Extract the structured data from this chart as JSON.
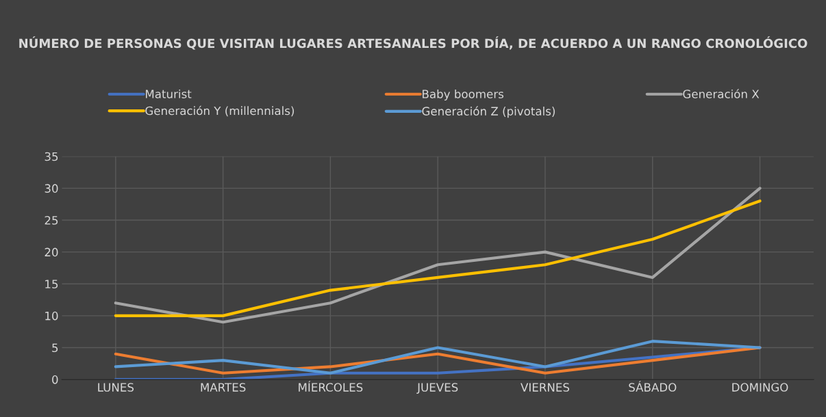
{
  "chart_data": {
    "type": "line",
    "title": "NÚMERO DE PERSONAS QUE VISITAN LUGARES ARTESANALES POR DÍA, DE ACUERDO A UN RANGO CRONOLÓGICO",
    "categories": [
      "LUNES",
      "MARTES",
      "MÍERCOLES",
      "JUEVES",
      "VIERNES",
      "SÁBADO",
      "DOMINGO"
    ],
    "series": [
      {
        "name": "Maturist",
        "color": "#4472c4",
        "values": [
          0,
          0,
          1,
          1,
          2,
          null,
          5
        ]
      },
      {
        "name": "Baby boomers",
        "color": "#ed7d31",
        "values": [
          4,
          1,
          2,
          4,
          1,
          3,
          5
        ]
      },
      {
        "name": "Generación X",
        "color": "#a5a5a5",
        "values": [
          12,
          9,
          12,
          18,
          20,
          16,
          30
        ]
      },
      {
        "name": "Generación Y (millennials)",
        "color": "#ffc000",
        "values": [
          10,
          10,
          14,
          16,
          18,
          22,
          28
        ]
      },
      {
        "name": "Generación Z (pivotals)",
        "color": "#5b9bd5",
        "values": [
          2,
          3,
          1,
          5,
          2,
          6,
          5
        ]
      }
    ],
    "ylim": [
      0,
      35
    ],
    "yticks": [
      0,
      5,
      10,
      15,
      20,
      25,
      30,
      35
    ],
    "grid": true,
    "legend": "top",
    "marker": "none",
    "line_style": "solid"
  }
}
